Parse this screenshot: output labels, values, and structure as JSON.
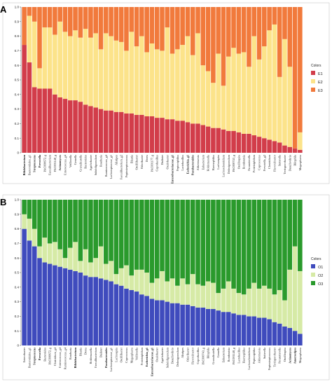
{
  "chart_data": [
    {
      "type": "bar",
      "stacked": true,
      "panel": "A",
      "ylim": [
        0,
        1.0
      ],
      "yticks": [
        "0",
        "0.1",
        "0.2",
        "0.3",
        "0.4",
        "0.5",
        "0.6",
        "0.7",
        "0.8",
        "0.9",
        "1.0"
      ],
      "legend": {
        "title": "Colors",
        "placement": "right"
      },
      "colors": {
        "E1": "#d23d4a",
        "E2": "#fce38a",
        "E3": "#f17a3c"
      },
      "categories": [
        "Bifidobacterium",
        "Bacteroidales_g1",
        "Streptococcus",
        "Prevotella",
        "PAC000672_g",
        "Faecalibacterium",
        "PAC001148_g",
        "Actinomyces",
        "Enterococcus_g4",
        "Veillonella",
        "Gemella",
        "Granulicatella",
        "Bacteroides",
        "Agathobacter",
        "Subdoligranulum",
        "Roseburia",
        "Ruminococcus_g4",
        "Lachnospiraceae_g1",
        "Alistipes",
        "Faecalibacterium_g2",
        "Peptostreptococcus",
        "Blautia",
        "Oscillibacter",
        "Odoribacter",
        "Dorea",
        "PAC001177_g",
        "Coprobacillus",
        "Dialister",
        "Oxalobacter",
        "Enterobacteriaceae_g1",
        "Peptoniphilus",
        "Lactobacillus",
        "Escherichia_g1",
        "Parabacteroides",
        "Akkermansia",
        "Eubacterium",
        "Holdemanella",
        "Haemophilus",
        "Lachnospira",
        "Lachnoclostridium",
        "Dolosigranulum",
        "PAC000743_g",
        "Oscillospira",
        "Romboutsia",
        "Parasutterella",
        "Proteiniphilum",
        "Coprococcus",
        "Prevotella_g2",
        "Clostridium",
        "Flavonifractor",
        "Sutterella",
        "Terrisporobacter",
        "Desulfovibrio",
        "Bilophila",
        "Megasphaera"
      ],
      "series": [
        {
          "name": "E1",
          "values": [
            0.74,
            0.62,
            0.45,
            0.44,
            0.44,
            0.44,
            0.4,
            0.38,
            0.37,
            0.36,
            0.36,
            0.35,
            0.33,
            0.32,
            0.31,
            0.3,
            0.29,
            0.29,
            0.28,
            0.28,
            0.27,
            0.27,
            0.26,
            0.26,
            0.25,
            0.25,
            0.24,
            0.24,
            0.23,
            0.23,
            0.22,
            0.22,
            0.21,
            0.2,
            0.2,
            0.19,
            0.18,
            0.17,
            0.17,
            0.16,
            0.15,
            0.15,
            0.14,
            0.13,
            0.13,
            0.12,
            0.11,
            0.1,
            0.09,
            0.08,
            0.07,
            0.05,
            0.04,
            0.03,
            0.02
          ]
        },
        {
          "name": "E2",
          "values": [
            0.0,
            0.32,
            0.45,
            0.14,
            0.42,
            0.42,
            0.41,
            0.52,
            0.46,
            0.44,
            0.48,
            0.44,
            0.52,
            0.47,
            0.51,
            0.41,
            0.53,
            0.51,
            0.49,
            0.48,
            0.43,
            0.56,
            0.47,
            0.54,
            0.44,
            0.5,
            0.47,
            0.46,
            0.63,
            0.45,
            0.49,
            0.52,
            0.59,
            0.47,
            0.62,
            0.41,
            0.38,
            0.31,
            0.51,
            0.3,
            0.51,
            0.57,
            0.54,
            0.56,
            0.46,
            0.68,
            0.53,
            0.63,
            0.75,
            0.8,
            0.45,
            0.73,
            0.55,
            0.0,
            0.12
          ]
        },
        {
          "name": "E3",
          "values": [
            0.26,
            0.06,
            0.1,
            0.42,
            0.14,
            0.14,
            0.19,
            0.1,
            0.17,
            0.2,
            0.16,
            0.21,
            0.15,
            0.21,
            0.18,
            0.29,
            0.18,
            0.2,
            0.23,
            0.24,
            0.3,
            0.17,
            0.27,
            0.2,
            0.31,
            0.25,
            0.29,
            0.3,
            0.14,
            0.32,
            0.29,
            0.26,
            0.2,
            0.33,
            0.18,
            0.4,
            0.44,
            0.52,
            0.32,
            0.54,
            0.34,
            0.28,
            0.32,
            0.31,
            0.41,
            0.2,
            0.36,
            0.27,
            0.16,
            0.12,
            0.48,
            0.22,
            0.41,
            0.97,
            0.86
          ]
        }
      ]
    },
    {
      "type": "bar",
      "stacked": true,
      "panel": "B",
      "ylim": [
        0,
        1.0
      ],
      "yticks": [
        "0",
        "0.1",
        "0.2",
        "0.3",
        "0.4",
        "0.5",
        "0.6",
        "0.7",
        "0.8",
        "0.9",
        "1.0"
      ],
      "legend": {
        "title": "Colors",
        "placement": "right"
      },
      "colors": {
        "O1": "#3f4bbd",
        "O2": "#d6eaa6",
        "O3": "#2a9a2c"
      },
      "categories": [
        "Enterobacter",
        "Bacteroidales_g1",
        "Streptococcus",
        "Prevotella",
        "Bacteroides",
        "PAC000672_g",
        "Clostridium_g4",
        "Enterococcus_g4",
        "Ruminococcus_g4",
        "Roseburia",
        "Bifidobacterium",
        "Blautia",
        "Dorea",
        "Holdemanella",
        "Faecalibacterium",
        "Dialister",
        "Parabacteroides",
        "Lachnospiraceae_g1",
        "Lachnospira",
        "Oscillibacter",
        "Coprococcus",
        "Megasphaera",
        "Veillonella",
        "Proteiniphilum",
        "Escherichia_g1",
        "Enterobacteriaceae_g1",
        "Oxalobacter",
        "Agathobacter",
        "Subdoligranulum",
        "Desulfovibrio",
        "Dolosigranulum",
        "Alistipes",
        "Odoribacter",
        "Flavonifractor",
        "Coprobacillus",
        "PAC000743_g",
        "Bilophila",
        "Granulicatella",
        "Gemella",
        "Eubacterium",
        "Romboutsia",
        "PAC001148_g",
        "Lactobacillus",
        "Haemophilus",
        "Lachnoclostridium",
        "Peptoniphilus",
        "Akkermansia",
        "Sutterella",
        "Peptostreptococcus",
        "Terrisporobacter",
        "Parasutterella",
        "Oscillospira",
        "Actinomyces",
        "Anaerostipes",
        "Megasphaera"
      ],
      "series": [
        {
          "name": "O1",
          "values": [
            0.8,
            0.72,
            0.68,
            0.6,
            0.57,
            0.56,
            0.55,
            0.54,
            0.53,
            0.52,
            0.51,
            0.5,
            0.48,
            0.47,
            0.47,
            0.46,
            0.45,
            0.44,
            0.42,
            0.41,
            0.39,
            0.38,
            0.37,
            0.35,
            0.34,
            0.32,
            0.31,
            0.31,
            0.3,
            0.29,
            0.29,
            0.28,
            0.28,
            0.27,
            0.26,
            0.26,
            0.25,
            0.25,
            0.24,
            0.23,
            0.23,
            0.22,
            0.21,
            0.21,
            0.2,
            0.2,
            0.19,
            0.19,
            0.18,
            0.16,
            0.15,
            0.13,
            0.12,
            0.1,
            0.08
          ]
        },
        {
          "name": "O2",
          "values": [
            0.1,
            0.15,
            0.12,
            0.08,
            0.17,
            0.14,
            0.16,
            0.12,
            0.07,
            0.15,
            0.2,
            0.08,
            0.18,
            0.1,
            0.13,
            0.22,
            0.11,
            0.14,
            0.07,
            0.12,
            0.16,
            0.1,
            0.15,
            0.17,
            0.16,
            0.11,
            0.15,
            0.2,
            0.14,
            0.17,
            0.12,
            0.18,
            0.14,
            0.22,
            0.16,
            0.15,
            0.19,
            0.18,
            0.12,
            0.16,
            0.21,
            0.17,
            0.15,
            0.14,
            0.19,
            0.23,
            0.2,
            0.22,
            0.21,
            0.19,
            0.23,
            0.18,
            0.4,
            0.58,
            0.43
          ]
        },
        {
          "name": "O3",
          "values": [
            0.1,
            0.13,
            0.2,
            0.32,
            0.26,
            0.3,
            0.29,
            0.34,
            0.4,
            0.33,
            0.29,
            0.42,
            0.34,
            0.43,
            0.4,
            0.32,
            0.44,
            0.42,
            0.51,
            0.47,
            0.45,
            0.52,
            0.48,
            0.48,
            0.5,
            0.57,
            0.54,
            0.49,
            0.56,
            0.54,
            0.59,
            0.54,
            0.58,
            0.51,
            0.58,
            0.59,
            0.56,
            0.57,
            0.64,
            0.61,
            0.56,
            0.61,
            0.64,
            0.65,
            0.61,
            0.57,
            0.61,
            0.59,
            0.61,
            0.65,
            0.62,
            0.69,
            0.48,
            0.32,
            0.49
          ]
        }
      ]
    }
  ]
}
